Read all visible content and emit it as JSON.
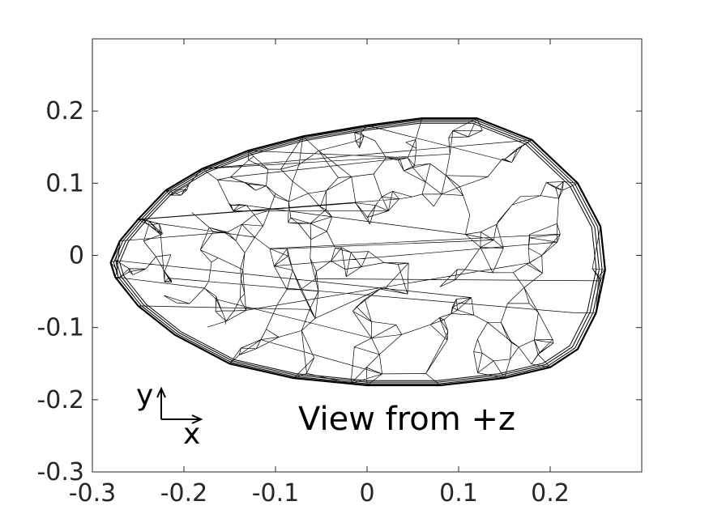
{
  "chart_data": {
    "type": "wireframe",
    "title": "",
    "xlabel": "",
    "ylabel": "",
    "xlim": [
      -0.3,
      0.3
    ],
    "ylim": [
      -0.3,
      0.3
    ],
    "grid": false,
    "x_ticks": [
      -0.3,
      -0.2,
      -0.1,
      0,
      0.1,
      0.2
    ],
    "x_tick_labels": [
      "-0.3",
      "-0.2",
      "-0.1",
      "0",
      "0.1",
      "0.2"
    ],
    "y_ticks": [
      -0.3,
      -0.2,
      -0.1,
      0,
      0.1,
      0.2
    ],
    "y_tick_labels": [
      "-0.3",
      "-0.2",
      "-0.1",
      "0",
      "0.1",
      "0.2"
    ],
    "annotation": "View from +z",
    "axes_indicator": {
      "y_label": "y",
      "x_label": "x"
    },
    "outline": {
      "x": [
        -0.28,
        -0.27,
        -0.25,
        -0.22,
        -0.18,
        -0.13,
        -0.07,
        0.0,
        0.06,
        0.12,
        0.18,
        0.23,
        0.255,
        0.26,
        0.25,
        0.23,
        0.2,
        0.15,
        0.08,
        0.0,
        -0.08,
        -0.15,
        -0.21,
        -0.25,
        -0.275
      ],
      "y": [
        -0.01,
        0.02,
        0.05,
        0.09,
        0.12,
        0.145,
        0.165,
        0.18,
        0.19,
        0.19,
        0.16,
        0.1,
        0.04,
        -0.02,
        -0.08,
        -0.13,
        -0.155,
        -0.17,
        -0.18,
        -0.18,
        -0.17,
        -0.15,
        -0.11,
        -0.07,
        -0.03
      ]
    },
    "line_color": "#000000",
    "background_color": "#ffffff"
  }
}
